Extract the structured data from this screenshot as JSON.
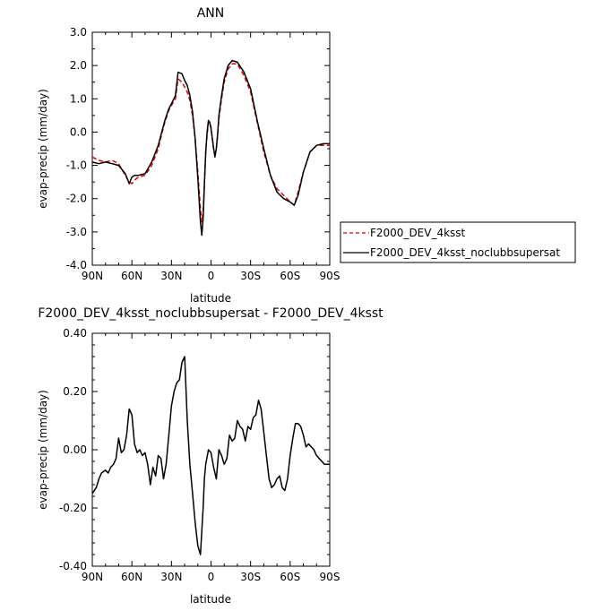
{
  "chart_data": [
    {
      "type": "line",
      "title": "ANN",
      "xlabel": "latitude",
      "ylabel": "evap-precip (mm/day)",
      "xlim": [
        90,
        -90
      ],
      "ylim": [
        -4.0,
        3.0
      ],
      "x_ticks": [
        90,
        60,
        30,
        0,
        -30,
        -60,
        -90
      ],
      "x_tick_labels": [
        "90N",
        "60N",
        "30N",
        "0",
        "30S",
        "60S",
        "90S"
      ],
      "y_ticks": [
        3.0,
        2.0,
        1.0,
        0.0,
        -1.0,
        -2.0,
        -3.0,
        -4.0
      ],
      "y_tick_labels": [
        "3.0",
        "2.0",
        "1.0",
        "0.0",
        "-1.0",
        "-2.0",
        "-3.0",
        "-4.0"
      ],
      "grid": false,
      "legend": "right",
      "series": [
        {
          "name": "F2000_DEV_4ksst",
          "color": "#e00000",
          "dash": "dashed",
          "x": [
            90,
            85,
            80,
            75,
            70,
            65,
            62,
            60,
            58,
            55,
            50,
            45,
            40,
            37,
            35,
            32,
            30,
            27,
            25,
            22,
            20,
            18,
            16,
            14,
            12,
            10,
            8,
            7,
            6,
            5,
            4,
            3,
            2,
            1,
            0,
            -2,
            -3,
            -4,
            -5,
            -6,
            -8,
            -10,
            -13,
            -16,
            -20,
            -25,
            -30,
            -35,
            -40,
            -45,
            -50,
            -55,
            -60,
            -63,
            -66,
            -70,
            -75,
            -80,
            -85,
            -90
          ],
          "y": [
            -0.75,
            -0.85,
            -0.9,
            -0.85,
            -0.95,
            -1.3,
            -1.5,
            -1.55,
            -1.45,
            -1.35,
            -1.3,
            -1.0,
            -0.5,
            0.0,
            0.3,
            0.65,
            0.8,
            1.0,
            1.6,
            1.5,
            1.35,
            1.2,
            0.95,
            0.5,
            -0.2,
            -1.2,
            -2.3,
            -2.7,
            -2.4,
            -1.5,
            -0.6,
            -0.1,
            0.3,
            0.3,
            0.15,
            -0.5,
            -0.65,
            -0.5,
            -0.1,
            0.4,
            1.0,
            1.5,
            1.9,
            2.05,
            2.05,
            1.7,
            1.2,
            0.3,
            -0.6,
            -1.3,
            -1.7,
            -1.9,
            -2.1,
            -2.2,
            -1.8,
            -1.2,
            -0.6,
            -0.4,
            -0.4,
            -0.4
          ]
        },
        {
          "name": "F2000_DEV_4ksst_noclubbsupersat",
          "color": "#000000",
          "dash": "solid",
          "x": [
            90,
            85,
            80,
            75,
            70,
            65,
            62,
            60,
            58,
            55,
            50,
            45,
            40,
            37,
            35,
            32,
            30,
            27,
            25,
            22,
            20,
            18,
            16,
            14,
            12,
            10,
            8,
            7,
            6,
            5,
            4,
            3,
            2,
            1,
            0,
            -2,
            -3,
            -4,
            -5,
            -6,
            -8,
            -10,
            -13,
            -16,
            -20,
            -25,
            -30,
            -35,
            -40,
            -45,
            -50,
            -55,
            -60,
            -63,
            -66,
            -70,
            -75,
            -80,
            -85,
            -90
          ],
          "y": [
            -0.9,
            -0.95,
            -0.9,
            -0.95,
            -1.0,
            -1.25,
            -1.55,
            -1.35,
            -1.3,
            -1.3,
            -1.25,
            -0.9,
            -0.4,
            0.05,
            0.35,
            0.7,
            0.85,
            1.1,
            1.8,
            1.75,
            1.55,
            1.4,
            1.1,
            0.6,
            -0.2,
            -1.4,
            -2.7,
            -3.1,
            -2.6,
            -1.6,
            -0.6,
            0.0,
            0.35,
            0.3,
            0.1,
            -0.5,
            -0.75,
            -0.5,
            -0.05,
            0.5,
            1.1,
            1.6,
            2.0,
            2.15,
            2.1,
            1.8,
            1.3,
            0.35,
            -0.5,
            -1.3,
            -1.8,
            -2.0,
            -2.1,
            -2.2,
            -1.9,
            -1.2,
            -0.6,
            -0.4,
            -0.35,
            -0.35
          ]
        }
      ]
    },
    {
      "type": "line",
      "title": "F2000_DEV_4ksst_noclubbsupersat - F2000_DEV_4ksst",
      "xlabel": "latitude",
      "ylabel": "evap-precip (mm/day)",
      "xlim": [
        90,
        -90
      ],
      "ylim": [
        -0.4,
        0.4
      ],
      "x_ticks": [
        90,
        60,
        30,
        0,
        -30,
        -60,
        -90
      ],
      "x_tick_labels": [
        "90N",
        "60N",
        "30N",
        "0",
        "30S",
        "60S",
        "90S"
      ],
      "y_ticks": [
        0.4,
        0.2,
        0.0,
        -0.2,
        -0.4
      ],
      "y_tick_labels": [
        "0.40",
        "0.20",
        "0.00",
        "-0.20",
        "-0.40"
      ],
      "grid": false,
      "series": [
        {
          "color": "#000000",
          "dash": "solid",
          "x": [
            90,
            87,
            85,
            83,
            80,
            78,
            76,
            74,
            72,
            70,
            68,
            66,
            64,
            62,
            60,
            58,
            56,
            54,
            52,
            50,
            48,
            46,
            44,
            42,
            40,
            38,
            36,
            34,
            32,
            30,
            28,
            26,
            24,
            22,
            20,
            18,
            16,
            14,
            12,
            10,
            8,
            6,
            5,
            4,
            2,
            0,
            -2,
            -4,
            -6,
            -8,
            -10,
            -12,
            -14,
            -16,
            -18,
            -20,
            -22,
            -24,
            -26,
            -28,
            -30,
            -32,
            -34,
            -36,
            -38,
            -40,
            -42,
            -44,
            -46,
            -48,
            -50,
            -52,
            -54,
            -56,
            -58,
            -60,
            -62,
            -64,
            -66,
            -68,
            -70,
            -72,
            -74,
            -76,
            -78,
            -80,
            -82,
            -84,
            -86,
            -88,
            -90
          ],
          "y": [
            -0.15,
            -0.13,
            -0.1,
            -0.08,
            -0.07,
            -0.08,
            -0.06,
            -0.05,
            -0.03,
            0.04,
            -0.01,
            0.0,
            0.05,
            0.14,
            0.12,
            0.02,
            -0.01,
            0.0,
            -0.02,
            -0.01,
            -0.05,
            -0.12,
            -0.06,
            -0.09,
            -0.02,
            -0.03,
            -0.1,
            -0.05,
            0.05,
            0.15,
            0.2,
            0.23,
            0.24,
            0.3,
            0.32,
            0.1,
            -0.05,
            -0.15,
            -0.25,
            -0.33,
            -0.36,
            -0.2,
            -0.1,
            -0.05,
            0.0,
            -0.01,
            -0.06,
            -0.1,
            0.0,
            -0.02,
            -0.05,
            -0.03,
            0.05,
            0.03,
            0.04,
            0.1,
            0.08,
            0.07,
            0.03,
            0.08,
            0.07,
            0.11,
            0.12,
            0.17,
            0.14,
            0.06,
            -0.02,
            -0.1,
            -0.13,
            -0.12,
            -0.1,
            -0.09,
            -0.13,
            -0.14,
            -0.1,
            -0.02,
            0.04,
            0.09,
            0.09,
            0.08,
            0.05,
            0.01,
            0.02,
            0.01,
            0.0,
            -0.02,
            -0.03,
            -0.04,
            -0.05,
            -0.05,
            -0.05
          ]
        }
      ]
    }
  ]
}
